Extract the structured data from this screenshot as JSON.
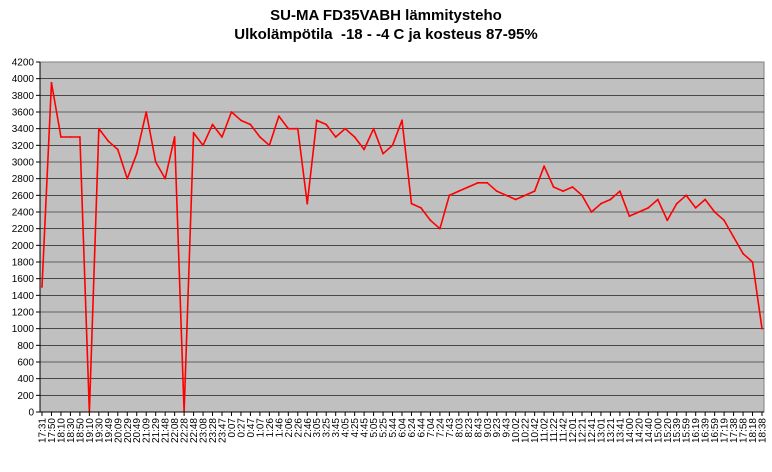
{
  "chart_data": {
    "type": "line",
    "title_line1": "SU-MA FD35VABH lämmitysteho",
    "title_line2": "Ulkolämpötila  -18 - -4 C ja kosteus 87-95%",
    "xlabel": "",
    "ylabel": "",
    "ylim": [
      0,
      4200
    ],
    "yticks": [
      0,
      200,
      400,
      600,
      800,
      1000,
      1200,
      1400,
      1600,
      1800,
      2000,
      2200,
      2400,
      2600,
      2800,
      3000,
      3200,
      3400,
      3600,
      3800,
      4000,
      4200
    ],
    "grid": true,
    "legend": "none",
    "plot_background": "#c0c0c0",
    "series_color": "#ff0000",
    "categories": [
      "17:31",
      "17:50",
      "18:10",
      "18:30",
      "18:50",
      "19:10",
      "19:30",
      "19:49",
      "20:09",
      "20:29",
      "20:49",
      "21:09",
      "21:29",
      "21:48",
      "22:08",
      "22:28",
      "22:48",
      "23:08",
      "23:28",
      "23:47",
      "0:07",
      "0:27",
      "0:47",
      "1:07",
      "1:26",
      "1:46",
      "2:06",
      "2:26",
      "2:46",
      "3:05",
      "3:25",
      "3:45",
      "4:05",
      "4:25",
      "4:45",
      "5:05",
      "5:25",
      "5:44",
      "6:04",
      "6:24",
      "6:44",
      "7:04",
      "7:24",
      "7:43",
      "8:03",
      "8:23",
      "8:43",
      "9:03",
      "9:23",
      "9:43",
      "10:02",
      "10:22",
      "10:42",
      "11:02",
      "11:22",
      "11:42",
      "12:01",
      "12:21",
      "12:41",
      "13:01",
      "13:21",
      "13:41",
      "14:00",
      "14:20",
      "14:40",
      "15:00",
      "15:20",
      "15:39",
      "15:59",
      "16:19",
      "16:39",
      "16:59",
      "17:19",
      "17:38",
      "17:58",
      "18:18",
      "18:38"
    ],
    "series": [
      {
        "values": [
          1500,
          3950,
          3300,
          3300,
          3300,
          0,
          3400,
          3250,
          3150,
          2800,
          3100,
          3600,
          3000,
          2800,
          3300,
          0,
          3350,
          3200,
          3450,
          3300,
          3600,
          3500,
          3450,
          3300,
          3200,
          3550,
          3400,
          3400,
          2500,
          3500,
          3450,
          3300,
          3400,
          3300,
          3150,
          3400,
          3100,
          3200,
          3500,
          2500,
          2450,
          2300,
          2200,
          2600,
          2650,
          2700,
          2750,
          2750,
          2650,
          2600,
          2550,
          2600,
          2650,
          2950,
          2700,
          2650,
          2700,
          2600,
          2400,
          2500,
          2550,
          2650,
          2350,
          2400,
          2450,
          2550,
          2300,
          2500,
          2600,
          2450,
          2550,
          2400,
          2300,
          2100,
          1900,
          1800,
          1000
        ]
      }
    ]
  }
}
